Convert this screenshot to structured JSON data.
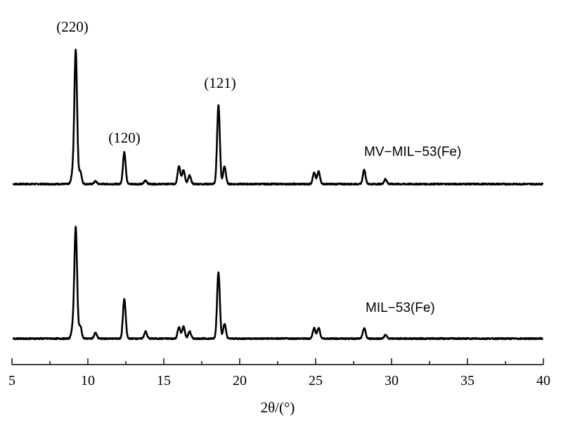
{
  "chart_data": {
    "type": "line",
    "xlabel": "2θ/(°)",
    "xlim": [
      5,
      40
    ],
    "x_ticks": [
      5,
      10,
      15,
      20,
      25,
      30,
      35,
      40
    ],
    "series": [
      {
        "name": "MV−MIL−53(Fe)",
        "peaks": [
          {
            "x": 9.0,
            "y": 15
          },
          {
            "x": 9.2,
            "y": 190
          },
          {
            "x": 9.5,
            "y": 18
          },
          {
            "x": 10.5,
            "y": 4
          },
          {
            "x": 12.4,
            "y": 45
          },
          {
            "x": 13.8,
            "y": 5
          },
          {
            "x": 16.0,
            "y": 26
          },
          {
            "x": 16.3,
            "y": 20
          },
          {
            "x": 16.7,
            "y": 12
          },
          {
            "x": 18.6,
            "y": 112
          },
          {
            "x": 19.0,
            "y": 25
          },
          {
            "x": 24.9,
            "y": 16
          },
          {
            "x": 25.2,
            "y": 18
          },
          {
            "x": 28.2,
            "y": 20
          },
          {
            "x": 29.6,
            "y": 7
          }
        ]
      },
      {
        "name": "MIL−53(Fe)",
        "peaks": [
          {
            "x": 9.0,
            "y": 15
          },
          {
            "x": 9.2,
            "y": 158
          },
          {
            "x": 9.5,
            "y": 18
          },
          {
            "x": 10.5,
            "y": 8
          },
          {
            "x": 12.4,
            "y": 56
          },
          {
            "x": 13.8,
            "y": 10
          },
          {
            "x": 16.0,
            "y": 16
          },
          {
            "x": 16.3,
            "y": 17
          },
          {
            "x": 16.7,
            "y": 10
          },
          {
            "x": 18.6,
            "y": 95
          },
          {
            "x": 19.0,
            "y": 21
          },
          {
            "x": 24.9,
            "y": 15
          },
          {
            "x": 25.2,
            "y": 15
          },
          {
            "x": 28.2,
            "y": 15
          },
          {
            "x": 29.6,
            "y": 5
          }
        ]
      }
    ],
    "annotations": [
      {
        "text": "(220)",
        "x": 9.2
      },
      {
        "text": "(120)",
        "x": 12.4
      },
      {
        "text": "(121)",
        "x": 18.6
      }
    ],
    "grid": false
  }
}
